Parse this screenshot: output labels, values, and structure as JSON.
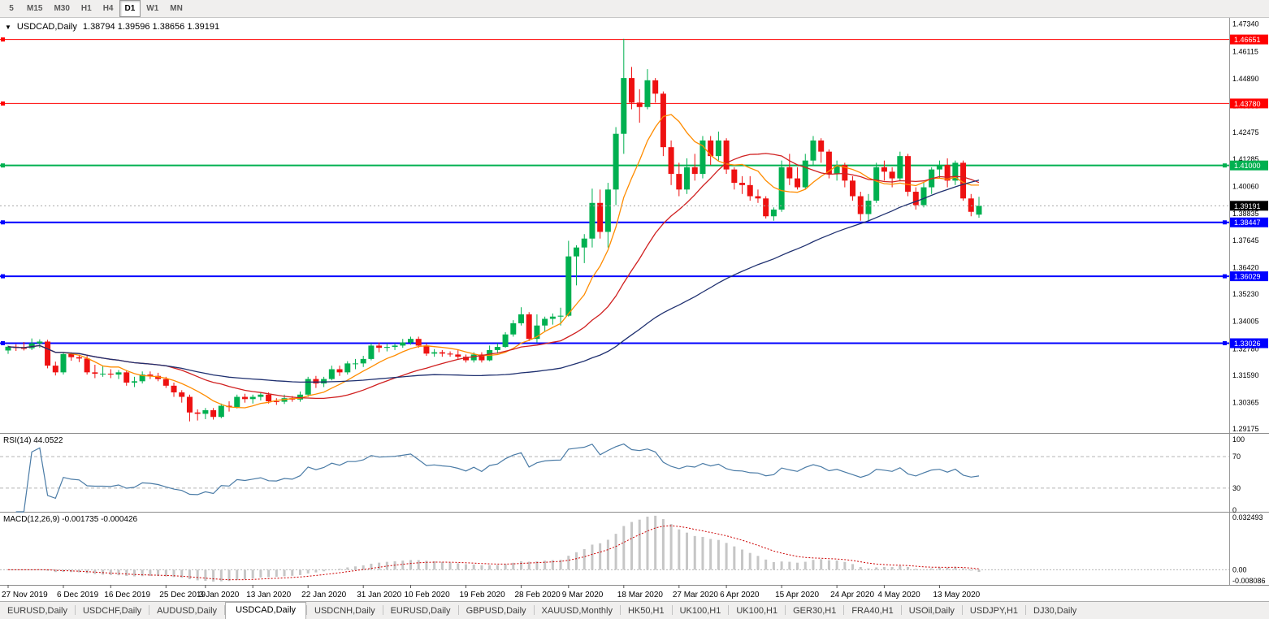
{
  "toolbar": {
    "timeframes": [
      {
        "label": "5",
        "active": false
      },
      {
        "label": "M15",
        "active": false
      },
      {
        "label": "M30",
        "active": false
      },
      {
        "label": "H1",
        "active": false
      },
      {
        "label": "H4",
        "active": false
      },
      {
        "label": "D1",
        "active": true
      },
      {
        "label": "W1",
        "active": false
      },
      {
        "label": "MN",
        "active": false
      }
    ]
  },
  "chart_header": {
    "symbol": "USDCAD,Daily",
    "ohlc": "1.38794 1.39596 1.38656 1.39191"
  },
  "colors": {
    "bull": "#00b050",
    "bear": "#ee1111",
    "ma_fast": "#ff8c00",
    "ma_mid": "#d02020",
    "ma_slow": "#1f3070",
    "rsi": "#4a7ba6",
    "grid_dash": "#b5b5b5",
    "current_line": "#a8a8a8",
    "axis_text": "#000000"
  },
  "chart_data": {
    "type": "candlestick",
    "symbol": "USDCAD",
    "timeframe": "Daily",
    "ohlc_display": {
      "open": "1.38794",
      "high": "1.39596",
      "low": "1.38656",
      "close": "1.39191"
    },
    "price_range": [
      1.29,
      1.4762
    ],
    "y_axis_ticks": [
      "1.47340",
      "1.46115",
      "1.44890",
      "1.43665",
      "1.42475",
      "1.41285",
      "1.40060",
      "1.38835",
      "1.37645",
      "1.36420",
      "1.35230",
      "1.34005",
      "1.32780",
      "1.31590",
      "1.30365",
      "1.29175"
    ],
    "horizontal_lines": [
      {
        "price": 1.46651,
        "label": "1.46651",
        "color": "#ff0000",
        "width": 1
      },
      {
        "price": 1.4378,
        "label": "1.43780",
        "color": "#ff0000",
        "width": 1
      },
      {
        "price": 1.41,
        "label": "1.41000",
        "color": "#00b050",
        "width": 2
      },
      {
        "price": 1.38447,
        "label": "1.38447",
        "color": "#0000ff",
        "width": 2
      },
      {
        "price": 1.36029,
        "label": "1.36029",
        "color": "#0000ff",
        "width": 2
      },
      {
        "price": 1.33026,
        "label": "1.33026",
        "color": "#0000ff",
        "width": 2
      }
    ],
    "current_price": {
      "price": 1.39191,
      "label": "1.39191",
      "badge_color": "#000000"
    },
    "moving_averages": [
      {
        "period": 8,
        "color": "#ff8c00"
      },
      {
        "period": 21,
        "color": "#d02020"
      },
      {
        "period": 55,
        "color": "#1f3070"
      }
    ],
    "rsi": {
      "label": "RSI(14) 44.0522",
      "period": 14,
      "current": "44.0522",
      "levels": [
        100,
        70,
        30,
        0
      ],
      "color": "#4a7ba6"
    },
    "macd": {
      "label": "MACD(12,26,9) -0.001735 -0.000426",
      "fast": 12,
      "slow": 26,
      "signal": 9,
      "current_main": "-0.001735",
      "current_signal": "-0.000426",
      "axis_labels": {
        "top": "0.032493",
        "zero": "0.00",
        "bottom": "-0.008086"
      },
      "range": [
        -0.0085,
        0.0325
      ],
      "histogram_color": "#c6c6c6",
      "signal_color": "#cc0000"
    },
    "x_axis_labels": [
      {
        "label": "27 Nov 2019",
        "index": 0
      },
      {
        "label": "6 Dec 2019",
        "index": 7
      },
      {
        "label": "16 Dec 2019",
        "index": 13
      },
      {
        "label": "25 Dec 2019",
        "index": 20
      },
      {
        "label": "3 Jan 2020",
        "index": 25
      },
      {
        "label": "13 Jan 2020",
        "index": 31
      },
      {
        "label": "22 Jan 2020",
        "index": 38
      },
      {
        "label": "31 Jan 2020",
        "index": 45
      },
      {
        "label": "10 Feb 2020",
        "index": 51
      },
      {
        "label": "19 Feb 2020",
        "index": 58
      },
      {
        "label": "28 Feb 2020",
        "index": 65
      },
      {
        "label": "9 Mar 2020",
        "index": 71
      },
      {
        "label": "18 Mar 2020",
        "index": 78
      },
      {
        "label": "27 Mar 2020",
        "index": 85
      },
      {
        "label": "6 Apr 2020",
        "index": 91
      },
      {
        "label": "15 Apr 2020",
        "index": 98
      },
      {
        "label": "24 Apr 2020",
        "index": 105
      },
      {
        "label": "4 May 2020",
        "index": 111
      },
      {
        "label": "13 May 2020",
        "index": 118
      }
    ],
    "candles": [
      [
        "27 Nov",
        1.327,
        1.3292,
        1.3255,
        1.3287
      ],
      [
        "28 Nov",
        1.3287,
        1.3298,
        1.3268,
        1.3281
      ],
      [
        "29 Nov",
        1.3281,
        1.3308,
        1.327,
        1.328
      ],
      [
        "2 Dec",
        1.328,
        1.3324,
        1.3272,
        1.3302
      ],
      [
        "3 Dec",
        1.3302,
        1.332,
        1.3282,
        1.331
      ],
      [
        "4 Dec",
        1.331,
        1.3318,
        1.319,
        1.3202
      ],
      [
        "5 Dec",
        1.3202,
        1.322,
        1.3158,
        1.3172
      ],
      [
        "6 Dec",
        1.3172,
        1.3262,
        1.3162,
        1.3254
      ],
      [
        "9 Dec",
        1.3254,
        1.3262,
        1.3224,
        1.324
      ],
      [
        "10 Dec",
        1.324,
        1.3252,
        1.3218,
        1.3234
      ],
      [
        "11 Dec",
        1.3234,
        1.3246,
        1.3162,
        1.3172
      ],
      [
        "12 Dec",
        1.3172,
        1.3206,
        1.3146,
        1.3166
      ],
      [
        "13 Dec",
        1.3166,
        1.3202,
        1.3152,
        1.3166
      ],
      [
        "16 Dec",
        1.3166,
        1.3186,
        1.3146,
        1.3162
      ],
      [
        "17 Dec",
        1.3162,
        1.3182,
        1.3142,
        1.3172
      ],
      [
        "18 Dec",
        1.3172,
        1.318,
        1.3112,
        1.3126
      ],
      [
        "19 Dec",
        1.3126,
        1.3152,
        1.3106,
        1.3132
      ],
      [
        "20 Dec",
        1.3132,
        1.3176,
        1.3122,
        1.3162
      ],
      [
        "23 Dec",
        1.3162,
        1.3176,
        1.3142,
        1.3156
      ],
      [
        "24 Dec",
        1.3156,
        1.317,
        1.3132,
        1.3142
      ],
      [
        "26 Dec",
        1.3142,
        1.3152,
        1.3102,
        1.3112
      ],
      [
        "27 Dec",
        1.3112,
        1.3126,
        1.3062,
        1.3082
      ],
      [
        "30 Dec",
        1.3082,
        1.3092,
        1.3036,
        1.3062
      ],
      [
        "31 Dec",
        1.3062,
        1.3072,
        1.2952,
        1.2992
      ],
      [
        "2 Jan",
        1.2992,
        1.3006,
        1.2956,
        1.2986
      ],
      [
        "3 Jan",
        1.2986,
        1.3012,
        1.2962,
        1.3002
      ],
      [
        "6 Jan",
        1.3002,
        1.3012,
        1.296,
        1.2972
      ],
      [
        "7 Jan",
        1.2972,
        1.3032,
        1.2966,
        1.3022
      ],
      [
        "8 Jan",
        1.3022,
        1.3042,
        1.2996,
        1.3016
      ],
      [
        "9 Jan",
        1.3016,
        1.3072,
        1.301,
        1.3062
      ],
      [
        "10 Jan",
        1.3062,
        1.3076,
        1.3036,
        1.3052
      ],
      [
        "13 Jan",
        1.3052,
        1.3072,
        1.3032,
        1.3062
      ],
      [
        "14 Jan",
        1.3062,
        1.3082,
        1.3046,
        1.3072
      ],
      [
        "15 Jan",
        1.3072,
        1.3082,
        1.3032,
        1.3042
      ],
      [
        "16 Jan",
        1.3042,
        1.3056,
        1.3026,
        1.304
      ],
      [
        "17 Jan",
        1.304,
        1.3072,
        1.303,
        1.3056
      ],
      [
        "20 Jan",
        1.3056,
        1.3066,
        1.304,
        1.305
      ],
      [
        "21 Jan",
        1.305,
        1.3086,
        1.304,
        1.3072
      ],
      [
        "22 Jan",
        1.3072,
        1.3152,
        1.3062,
        1.3142
      ],
      [
        "23 Jan",
        1.3142,
        1.3156,
        1.3102,
        1.3122
      ],
      [
        "24 Jan",
        1.3122,
        1.3152,
        1.3106,
        1.3142
      ],
      [
        "27 Jan",
        1.3142,
        1.3202,
        1.3136,
        1.3186
      ],
      [
        "28 Jan",
        1.3186,
        1.3202,
        1.3156,
        1.3172
      ],
      [
        "29 Jan",
        1.3172,
        1.3222,
        1.3162,
        1.3212
      ],
      [
        "30 Jan",
        1.3212,
        1.3232,
        1.3186,
        1.3212
      ],
      [
        "31 Jan",
        1.3212,
        1.3246,
        1.3196,
        1.3232
      ],
      [
        "3 Feb",
        1.3232,
        1.3302,
        1.3226,
        1.3292
      ],
      [
        "4 Feb",
        1.3292,
        1.3306,
        1.3262,
        1.3282
      ],
      [
        "5 Feb",
        1.3282,
        1.3302,
        1.3266,
        1.3286
      ],
      [
        "6 Feb",
        1.3286,
        1.3302,
        1.3272,
        1.3292
      ],
      [
        "7 Feb",
        1.3292,
        1.3322,
        1.3282,
        1.3306
      ],
      [
        "10 Feb",
        1.3306,
        1.3332,
        1.3296,
        1.3322
      ],
      [
        "11 Feb",
        1.3322,
        1.3332,
        1.3282,
        1.3292
      ],
      [
        "12 Feb",
        1.3292,
        1.3302,
        1.3246,
        1.3256
      ],
      [
        "13 Feb",
        1.3256,
        1.3276,
        1.3242,
        1.3262
      ],
      [
        "14 Feb",
        1.3262,
        1.3272,
        1.3242,
        1.3256
      ],
      [
        "17 Feb",
        1.3256,
        1.3266,
        1.3242,
        1.3252
      ],
      [
        "18 Feb",
        1.3252,
        1.3272,
        1.3232,
        1.3242
      ],
      [
        "19 Feb",
        1.3242,
        1.3252,
        1.3216,
        1.3226
      ],
      [
        "20 Feb",
        1.3226,
        1.3262,
        1.3216,
        1.3252
      ],
      [
        "21 Feb",
        1.3252,
        1.3262,
        1.3216,
        1.3226
      ],
      [
        "24 Feb",
        1.3226,
        1.3292,
        1.3222,
        1.3272
      ],
      [
        "25 Feb",
        1.3272,
        1.3302,
        1.3256,
        1.3286
      ],
      [
        "26 Feb",
        1.3286,
        1.3352,
        1.3282,
        1.3342
      ],
      [
        "27 Feb",
        1.3342,
        1.3406,
        1.3332,
        1.3392
      ],
      [
        "28 Feb",
        1.3392,
        1.3464,
        1.3382,
        1.3432
      ],
      [
        "2 Mar",
        1.3432,
        1.3442,
        1.3312,
        1.3322
      ],
      [
        "3 Mar",
        1.3322,
        1.3432,
        1.3306,
        1.3382
      ],
      [
        "4 Mar",
        1.3382,
        1.3422,
        1.3356,
        1.3412
      ],
      [
        "5 Mar",
        1.3412,
        1.3436,
        1.3386,
        1.3422
      ],
      [
        "6 Mar",
        1.3422,
        1.3462,
        1.3382,
        1.3426
      ],
      [
        "9 Mar",
        1.3426,
        1.3762,
        1.3422,
        1.3692
      ],
      [
        "10 Mar",
        1.3692,
        1.3742,
        1.3562,
        1.3732
      ],
      [
        "11 Mar",
        1.3732,
        1.3792,
        1.3662,
        1.3772
      ],
      [
        "12 Mar",
        1.3772,
        1.3996,
        1.3732,
        1.3932
      ],
      [
        "13 Mar",
        1.3932,
        1.3992,
        1.3772,
        1.3802
      ],
      [
        "16 Mar",
        1.3802,
        1.4022,
        1.3732,
        1.3992
      ],
      [
        "17 Mar",
        1.3992,
        1.4272,
        1.3922,
        1.4242
      ],
      [
        "18 Mar",
        1.4242,
        1.4668,
        1.4152,
        1.4492
      ],
      [
        "19 Mar",
        1.4492,
        1.4542,
        1.4352,
        1.4382
      ],
      [
        "20 Mar",
        1.4382,
        1.4442,
        1.4292,
        1.4362
      ],
      [
        "23 Mar",
        1.4362,
        1.4532,
        1.4352,
        1.4482
      ],
      [
        "24 Mar",
        1.4482,
        1.4492,
        1.4382,
        1.4422
      ],
      [
        "25 Mar",
        1.4422,
        1.4432,
        1.4142,
        1.4182
      ],
      [
        "26 Mar",
        1.4182,
        1.4212,
        1.4012,
        1.4062
      ],
      [
        "27 Mar",
        1.4062,
        1.4112,
        1.3962,
        1.3992
      ],
      [
        "30 Mar",
        1.3992,
        1.4132,
        1.3972,
        1.4092
      ],
      [
        "31 Mar",
        1.4092,
        1.4152,
        1.4032,
        1.4062
      ],
      [
        "1 Apr",
        1.4062,
        1.4232,
        1.4042,
        1.4212
      ],
      [
        "2 Apr",
        1.4212,
        1.4232,
        1.4102,
        1.4142
      ],
      [
        "3 Apr",
        1.4142,
        1.4252,
        1.4122,
        1.4212
      ],
      [
        "6 Apr",
        1.4212,
        1.4222,
        1.4062,
        1.4082
      ],
      [
        "7 Apr",
        1.4082,
        1.4092,
        1.3992,
        1.4022
      ],
      [
        "8 Apr",
        1.4022,
        1.4052,
        1.3972,
        1.4012
      ],
      [
        "9 Apr",
        1.4012,
        1.4052,
        1.3942,
        1.3962
      ],
      [
        "10 Apr",
        1.3962,
        1.3992,
        1.3932,
        1.3952
      ],
      [
        "13 Apr",
        1.3952,
        1.3962,
        1.3862,
        1.3872
      ],
      [
        "14 Apr",
        1.3872,
        1.3912,
        1.3852,
        1.3902
      ],
      [
        "15 Apr",
        1.3902,
        1.4122,
        1.3892,
        1.4092
      ],
      [
        "16 Apr",
        1.4092,
        1.4152,
        1.4012,
        1.4042
      ],
      [
        "17 Apr",
        1.4042,
        1.4092,
        1.3992,
        1.4002
      ],
      [
        "20 Apr",
        1.4002,
        1.4152,
        1.3992,
        1.4122
      ],
      [
        "21 Apr",
        1.4122,
        1.4232,
        1.4102,
        1.4212
      ],
      [
        "22 Apr",
        1.4212,
        1.4222,
        1.4112,
        1.4162
      ],
      [
        "23 Apr",
        1.4162,
        1.4172,
        1.4042,
        1.4062
      ],
      [
        "24 Apr",
        1.4062,
        1.4122,
        1.4032,
        1.4102
      ],
      [
        "27 Apr",
        1.4102,
        1.4112,
        1.4002,
        1.4032
      ],
      [
        "28 Apr",
        1.4032,
        1.4052,
        1.3942,
        1.3962
      ],
      [
        "29 Apr",
        1.3962,
        1.3982,
        1.3852,
        1.3882
      ],
      [
        "30 Apr",
        1.3882,
        1.3972,
        1.3852,
        1.3942
      ],
      [
        "1 May",
        1.3942,
        1.4112,
        1.3932,
        1.4092
      ],
      [
        "4 May",
        1.4092,
        1.4122,
        1.4032,
        1.4072
      ],
      [
        "5 May",
        1.4072,
        1.4092,
        1.4002,
        1.4042
      ],
      [
        "6 May",
        1.4042,
        1.4162,
        1.4032,
        1.4142
      ],
      [
        "7 May",
        1.4142,
        1.4152,
        1.3962,
        1.3982
      ],
      [
        "8 May",
        1.3982,
        1.4002,
        1.3902,
        1.3922
      ],
      [
        "11 May",
        1.3922,
        1.4022,
        1.3912,
        1.4002
      ],
      [
        "12 May",
        1.4002,
        1.4092,
        1.3972,
        1.4082
      ],
      [
        "13 May",
        1.4082,
        1.4122,
        1.4042,
        1.4102
      ],
      [
        "14 May",
        1.4102,
        1.4132,
        1.4002,
        1.4032
      ],
      [
        "15 May",
        1.4032,
        1.4122,
        1.4012,
        1.4112
      ],
      [
        "18 May",
        1.4112,
        1.4122,
        1.3942,
        1.3952
      ],
      [
        "19 May",
        1.3952,
        1.3972,
        1.3872,
        1.3892
      ],
      [
        "20 May",
        1.38794,
        1.39596,
        1.38656,
        1.39191
      ]
    ]
  },
  "tabs": [
    {
      "label": "EURUSD,Daily",
      "active": false
    },
    {
      "label": "USDCHF,Daily",
      "active": false
    },
    {
      "label": "AUDUSD,Daily",
      "active": false
    },
    {
      "label": "USDCAD,Daily",
      "active": true
    },
    {
      "label": "USDCNH,Daily",
      "active": false
    },
    {
      "label": "EURUSD,Daily",
      "active": false
    },
    {
      "label": "GBPUSD,Daily",
      "active": false
    },
    {
      "label": "XAUUSD,Monthly",
      "active": false
    },
    {
      "label": "HK50,H1",
      "active": false
    },
    {
      "label": "UK100,H1",
      "active": false
    },
    {
      "label": "UK100,H1",
      "active": false
    },
    {
      "label": "GER30,H1",
      "active": false
    },
    {
      "label": "FRA40,H1",
      "active": false
    },
    {
      "label": "USOil,Daily",
      "active": false
    },
    {
      "label": "USDJPY,H1",
      "active": false
    },
    {
      "label": "DJ30,Daily",
      "active": false
    }
  ]
}
